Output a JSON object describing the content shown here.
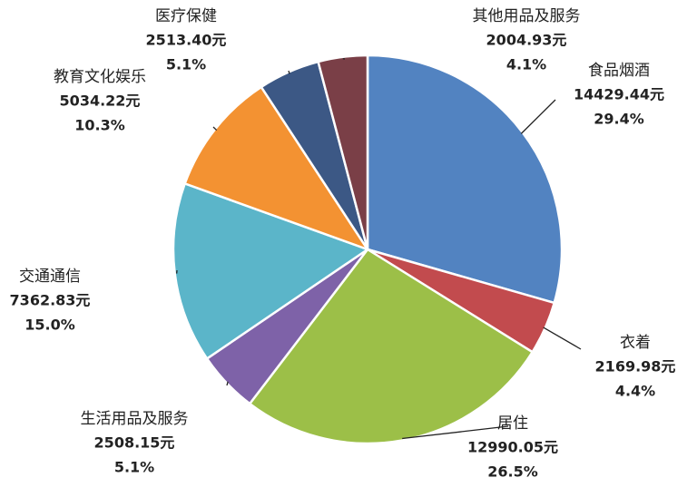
{
  "chart_data": {
    "type": "pie",
    "categories": [
      "食品烟酒",
      "衣着",
      "居住",
      "生活用品及服务",
      "交通通信",
      "教育文化娱乐",
      "医疗保健",
      "其他用品及服务"
    ],
    "values": [
      14429.44,
      2169.98,
      12990.05,
      2508.15,
      7362.83,
      5034.22,
      2513.4,
      2004.93
    ],
    "value_labels": [
      "14429.44元",
      "2169.98元",
      "12990.05元",
      "2508.15元",
      "7362.83元",
      "5034.22元",
      "2513.40元",
      "2004.93元"
    ],
    "percentages": [
      29.4,
      4.4,
      26.5,
      5.1,
      15.0,
      10.3,
      5.1,
      4.1
    ],
    "percentage_labels": [
      "29.4%",
      "4.4%",
      "26.5%",
      "5.1%",
      "15.0%",
      "10.3%",
      "5.1%",
      "4.1%"
    ],
    "colors": [
      "#5283c1",
      "#c24b4e",
      "#9cbf48",
      "#7e62a8",
      "#5bb5c9",
      "#f39232",
      "#3c5885",
      "#7a3f47"
    ]
  }
}
